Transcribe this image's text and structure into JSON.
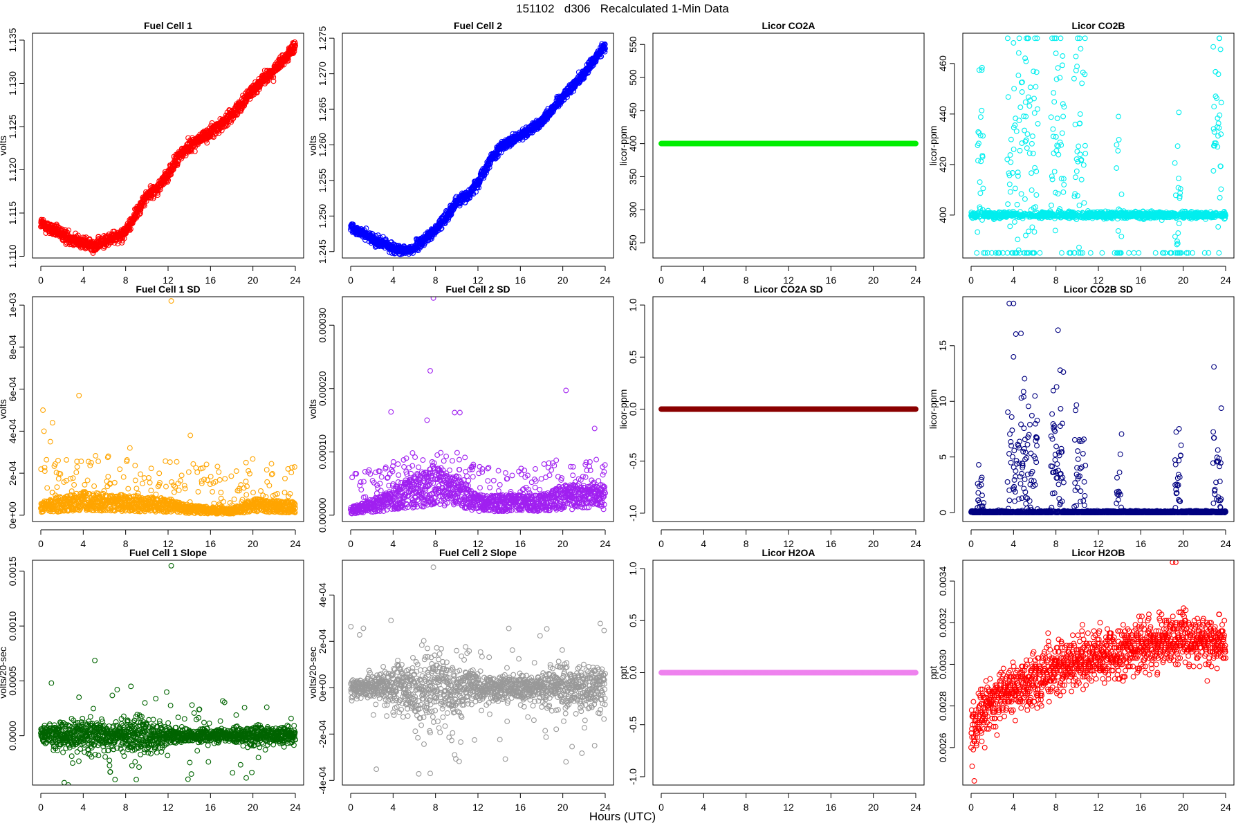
{
  "page_title": "151102   d306   Recalculated 1-Min Data",
  "x_axis_label": "Hours (UTC)",
  "x_ticks": [
    "0",
    "4",
    "8",
    "12",
    "16",
    "20",
    "24"
  ],
  "chart_data": [
    {
      "id": "fc1",
      "type": "scatter",
      "title": "Fuel Cell 1",
      "ylabel": "volts",
      "color": "#ff0000",
      "xlim": [
        0,
        24
      ],
      "ylim": [
        1.1098,
        1.1358
      ],
      "yticks": [
        1.11,
        1.115,
        1.12,
        1.125,
        1.13,
        1.135
      ],
      "yticklabels": [
        "1.110",
        "1.115",
        "1.120",
        "1.125",
        "1.130",
        "1.135"
      ],
      "gen": "curve",
      "curve": [
        [
          0,
          1.1138
        ],
        [
          2,
          1.1125
        ],
        [
          4,
          1.1115
        ],
        [
          5,
          1.1112
        ],
        [
          6,
          1.1117
        ],
        [
          8,
          1.1128
        ],
        [
          9,
          1.115
        ],
        [
          10,
          1.117
        ],
        [
          11,
          1.1178
        ],
        [
          12,
          1.1195
        ],
        [
          13,
          1.1215
        ],
        [
          14,
          1.1228
        ],
        [
          16,
          1.1243
        ],
        [
          18,
          1.1263
        ],
        [
          20,
          1.1293
        ],
        [
          22,
          1.1315
        ],
        [
          24,
          1.1342
        ]
      ],
      "noise": 0.00035
    },
    {
      "id": "fc2",
      "type": "scatter",
      "title": "Fuel Cell 2",
      "ylabel": "volts",
      "color": "#0000ff",
      "xlim": [
        0,
        24
      ],
      "ylim": [
        1.2441,
        1.2757
      ],
      "yticks": [
        1.245,
        1.25,
        1.255,
        1.26,
        1.265,
        1.27,
        1.275
      ],
      "yticklabels": [
        "1.245",
        "1.250",
        "1.255",
        "1.260",
        "1.265",
        "1.270",
        "1.275"
      ],
      "gen": "curve",
      "curve": [
        [
          0,
          1.2485
        ],
        [
          2,
          1.2468
        ],
        [
          4,
          1.2455
        ],
        [
          5,
          1.245
        ],
        [
          6,
          1.2455
        ],
        [
          8,
          1.248
        ],
        [
          9,
          1.25
        ],
        [
          10,
          1.252
        ],
        [
          11,
          1.2528
        ],
        [
          12,
          1.2548
        ],
        [
          13,
          1.2575
        ],
        [
          14,
          1.2595
        ],
        [
          16,
          1.2612
        ],
        [
          18,
          1.2633
        ],
        [
          20,
          1.2668
        ],
        [
          22,
          1.27
        ],
        [
          24,
          1.274
        ]
      ],
      "noise": 0.00035
    },
    {
      "id": "co2a",
      "type": "scatter",
      "title": "Licor CO2A",
      "ylabel": "licor-ppm",
      "color": "#00ee00",
      "xlim": [
        0,
        24
      ],
      "ylim": [
        227,
        567
      ],
      "yticks": [
        250,
        300,
        350,
        400,
        450,
        500,
        550
      ],
      "yticklabels": [
        "250",
        "300",
        "350",
        "400",
        "450",
        "500",
        "550"
      ],
      "gen": "flat",
      "value": 400
    },
    {
      "id": "co2b",
      "type": "scatter",
      "title": "Licor CO2B",
      "ylabel": "licor-ppm",
      "color": "#00eeee",
      "xlim": [
        0,
        24
      ],
      "ylim": [
        383,
        472
      ],
      "yticks": [
        400,
        420,
        440,
        460
      ],
      "yticklabels": [
        "400",
        "420",
        "440",
        "460"
      ],
      "gen": "bursty",
      "base": 400,
      "bnoise": 0.6,
      "range": [
        385,
        470
      ],
      "floorProb": 0.03,
      "floorVal": 385,
      "bursts": [
        [
          0.6,
          1.2,
          6,
          420,
          22
        ],
        [
          3.4,
          6.3,
          9,
          425,
          30
        ],
        [
          7.5,
          8.8,
          8,
          435,
          25
        ],
        [
          9.7,
          10.8,
          8,
          430,
          25
        ],
        [
          13.7,
          14.2,
          3,
          398,
          20
        ],
        [
          19.2,
          19.8,
          3,
          395,
          20
        ],
        [
          22.8,
          23.6,
          7,
          440,
          20
        ]
      ]
    },
    {
      "id": "fc1sd",
      "type": "scatter",
      "title": "Fuel Cell 1 SD",
      "ylabel": "volts",
      "color": "#ffa500",
      "xlim": [
        0,
        24
      ],
      "ylim": [
        -3e-05,
        0.00104
      ],
      "yticks": [
        0,
        0.0002,
        0.0004,
        0.0006,
        0.0008,
        0.001
      ],
      "yticklabels": [
        "0e+00",
        "2e-04",
        "4e-04",
        "6e-04",
        "8e-04",
        "1e-03"
      ],
      "gen": "sd",
      "base": 3e-05,
      "curve": [
        [
          0,
          4e-05
        ],
        [
          4,
          7e-05
        ],
        [
          8,
          6e-05
        ],
        [
          12,
          5e-05
        ],
        [
          14,
          3e-05
        ],
        [
          18,
          2e-05
        ],
        [
          20,
          5e-05
        ],
        [
          24,
          4e-05
        ]
      ],
      "spikeProb": 0.12,
      "spikeMax": 0.00022,
      "outliers": [
        [
          12.3,
          0.00102
        ],
        [
          3.6,
          0.00057
        ],
        [
          0.2,
          0.0005
        ],
        [
          0.3,
          0.0004
        ],
        [
          1.1,
          0.00044
        ],
        [
          14.1,
          0.00038
        ],
        [
          0.9,
          0.00035
        ],
        [
          8.4,
          0.00032
        ]
      ]
    },
    {
      "id": "fc2sd",
      "type": "scatter",
      "title": "Fuel Cell 2 SD",
      "ylabel": "volts",
      "color": "#a020f0",
      "xlim": [
        0,
        24
      ],
      "ylim": [
        -1e-05,
        0.000345
      ],
      "yticks": [
        0,
        0.0001,
        0.0002,
        0.0003
      ],
      "yticklabels": [
        "0.00000",
        "0.00010",
        "0.00020",
        "0.00030"
      ],
      "gen": "sd",
      "base": 1e-05,
      "curve": [
        [
          0,
          8e-06
        ],
        [
          3,
          2e-05
        ],
        [
          6,
          4e-05
        ],
        [
          8,
          5e-05
        ],
        [
          10,
          4e-05
        ],
        [
          12,
          2e-05
        ],
        [
          18,
          2e-05
        ],
        [
          20,
          3e-05
        ],
        [
          24,
          3e-05
        ]
      ],
      "spikeProb": 0.15,
      "spikeMax": 6e-05,
      "outliers": [
        [
          7.8,
          0.000343
        ],
        [
          7.5,
          0.000228
        ],
        [
          20.3,
          0.000197
        ],
        [
          3.8,
          0.000163
        ],
        [
          9.8,
          0.000162
        ],
        [
          10.3,
          0.000162
        ],
        [
          7.2,
          0.00015
        ],
        [
          23,
          0.000137
        ]
      ]
    },
    {
      "id": "co2asd",
      "type": "scatter",
      "title": "Licor CO2A SD",
      "ylabel": "licor-ppm",
      "color": "#8b0000",
      "xlim": [
        0,
        24
      ],
      "ylim": [
        -1.08,
        1.08
      ],
      "yticks": [
        -1,
        -0.5,
        0,
        0.5,
        1
      ],
      "yticklabels": [
        "-1.0",
        "-0.5",
        "0.0",
        "0.5",
        "1.0"
      ],
      "gen": "flat",
      "value": 0
    },
    {
      "id": "co2bsd",
      "type": "scatter",
      "title": "Licor CO2B SD",
      "ylabel": "licor-ppm",
      "color": "#000080",
      "xlim": [
        0,
        24
      ],
      "ylim": [
        -0.8,
        19.4
      ],
      "yticks": [
        0,
        5,
        10,
        15
      ],
      "yticklabels": [
        "0",
        "5",
        "10",
        "15"
      ],
      "gen": "bursty",
      "base": 0.05,
      "bnoise": 0.05,
      "range": [
        0,
        19
      ],
      "floorProb": 0,
      "floorVal": 0,
      "bursts": [
        [
          0.6,
          1.2,
          6,
          1.5,
          2
        ],
        [
          3.4,
          6.3,
          9,
          4,
          4
        ],
        [
          7.5,
          8.8,
          8,
          4,
          4
        ],
        [
          9.7,
          10.8,
          8,
          3,
          3
        ],
        [
          13.7,
          14.2,
          3,
          2,
          3
        ],
        [
          19.2,
          19.8,
          3,
          2,
          3
        ],
        [
          22.8,
          23.6,
          7,
          3,
          3
        ]
      ],
      "outliers": [
        [
          3.6,
          18.8
        ],
        [
          4.0,
          18.8
        ],
        [
          8.2,
          16.4
        ],
        [
          4.7,
          16.1
        ],
        [
          4.0,
          14
        ],
        [
          8.4,
          12.8
        ],
        [
          22.9,
          13.1
        ]
      ]
    },
    {
      "id": "fc1slope",
      "type": "scatter",
      "title": "Fuel Cell 1 Slope",
      "ylabel": "volts/20-sec",
      "color": "#006400",
      "xlim": [
        0,
        24
      ],
      "ylim": [
        -0.00045,
        0.0016
      ],
      "yticks": [
        0,
        0.0005,
        0.001,
        0.0015
      ],
      "yticklabels": [
        "0.0000",
        "0.0005",
        "0.0010",
        "0.0015"
      ],
      "gen": "slope",
      "center": 0,
      "ampCurve": [
        [
          0,
          6e-05
        ],
        [
          4,
          9e-05
        ],
        [
          10,
          0.0001
        ],
        [
          13,
          4e-05
        ],
        [
          18,
          3e-05
        ],
        [
          20,
          6e-05
        ],
        [
          24,
          5e-05
        ]
      ],
      "spikeProb": 0.06,
      "spikeAmp": 0.00025,
      "outliers": [
        [
          12.3,
          0.00155
        ],
        [
          1.0,
          0.00048
        ],
        [
          8.5,
          0.00045
        ],
        [
          7.2,
          0.00042
        ],
        [
          7.0,
          -0.0004
        ],
        [
          9.0,
          -0.0004
        ],
        [
          14.2,
          -0.00035
        ]
      ]
    },
    {
      "id": "fc2slope",
      "type": "scatter",
      "title": "Fuel Cell 2 Slope",
      "ylabel": "volts/20-sec",
      "color": "#999999",
      "xlim": [
        0,
        24
      ],
      "ylim": [
        -0.00042,
        0.00055
      ],
      "yticks": [
        -0.0004,
        -0.0002,
        0,
        0.0002,
        0.0004
      ],
      "yticklabels": [
        "-4e-04",
        "-2e-04",
        "0e+00",
        "2e-04",
        "4e-04"
      ],
      "gen": "slope",
      "center": 0,
      "ampCurve": [
        [
          0,
          2e-05
        ],
        [
          3,
          4e-05
        ],
        [
          6,
          9e-05
        ],
        [
          8,
          0.0001
        ],
        [
          10,
          8e-05
        ],
        [
          12,
          4e-05
        ],
        [
          18,
          3e-05
        ],
        [
          20,
          6e-05
        ],
        [
          24,
          6e-05
        ]
      ],
      "spikeProb": 0.08,
      "spikeAmp": 0.00015,
      "outliers": [
        [
          7.8,
          0.00052
        ],
        [
          3.8,
          0.00029
        ],
        [
          7.5,
          -0.00037
        ],
        [
          20.3,
          -0.00032
        ],
        [
          9.8,
          -0.00029
        ],
        [
          23,
          -0.00025
        ]
      ]
    },
    {
      "id": "h2oa",
      "type": "scatter",
      "title": "Licor H2OA",
      "ylabel": "ppt",
      "color": "#ee82ee",
      "xlim": [
        0,
        24
      ],
      "ylim": [
        -1.08,
        1.08
      ],
      "yticks": [
        -1,
        -0.5,
        0,
        0.5,
        1
      ],
      "yticklabels": [
        "-1.0",
        "-0.5",
        "0.0",
        "0.5",
        "1.0"
      ],
      "gen": "flat",
      "value": 0
    },
    {
      "id": "h2ob",
      "type": "scatter",
      "title": "Licor H2OB",
      "ylabel": "ppt",
      "color": "#ff0000",
      "xlim": [
        0,
        24
      ],
      "ylim": [
        0.00242,
        0.0035
      ],
      "yticks": [
        0.0026,
        0.0028,
        0.003,
        0.0032,
        0.0034
      ],
      "yticklabels": [
        "0.0026",
        "0.0028",
        "0.0030",
        "0.0032",
        "0.0034"
      ],
      "gen": "quant",
      "curve": [
        [
          0,
          0.00268
        ],
        [
          2,
          0.00282
        ],
        [
          4,
          0.00289
        ],
        [
          6,
          0.00292
        ],
        [
          8,
          0.00298
        ],
        [
          12,
          0.00304
        ],
        [
          16,
          0.00309
        ],
        [
          20,
          0.00312
        ],
        [
          24,
          0.00311
        ]
      ],
      "spread": 0.00012,
      "step": 1e-05,
      "outliers": [
        [
          0.3,
          0.00244
        ],
        [
          0.1,
          0.00251
        ],
        [
          19,
          0.00349
        ],
        [
          19.3,
          0.00349
        ]
      ]
    }
  ]
}
